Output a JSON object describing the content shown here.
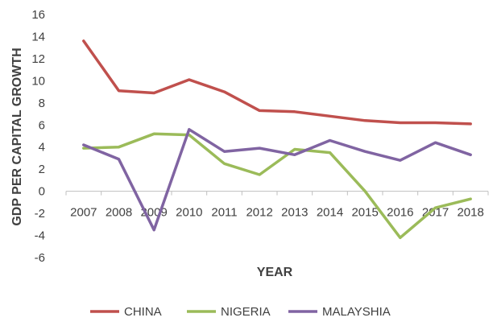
{
  "chart_data": {
    "type": "line",
    "title": "",
    "xlabel": "YEAR",
    "ylabel": "GDP PER CAPITAL GROWTH",
    "ylim": [
      -6,
      16
    ],
    "yticks": [
      "16",
      "14",
      "12",
      "10",
      "8",
      "6",
      "4",
      "2",
      "0",
      "-2",
      "-4",
      "-6"
    ],
    "grid": "off",
    "legend_position": "bottom",
    "categories": [
      "2007",
      "2008",
      "2009",
      "2010",
      "2011",
      "2012",
      "2013",
      "2014",
      "2015",
      "2016",
      "2017",
      "2018"
    ],
    "series": [
      {
        "name": "CHINA",
        "color": "#c0504d",
        "values": [
          13.6,
          9.1,
          8.9,
          10.1,
          9.0,
          7.3,
          7.2,
          6.8,
          6.4,
          6.2,
          6.2,
          6.1
        ]
      },
      {
        "name": "NIGERIA",
        "color": "#9bbb59",
        "values": [
          3.9,
          4.0,
          5.2,
          5.1,
          2.5,
          1.5,
          3.8,
          3.5,
          0.0,
          -4.2,
          -1.5,
          -0.7
        ]
      },
      {
        "name": "MALAYSHIA",
        "color": "#8064a2",
        "values": [
          4.2,
          2.9,
          -3.5,
          5.6,
          3.6,
          3.9,
          3.3,
          4.6,
          3.6,
          2.8,
          4.4,
          3.3
        ]
      }
    ]
  }
}
